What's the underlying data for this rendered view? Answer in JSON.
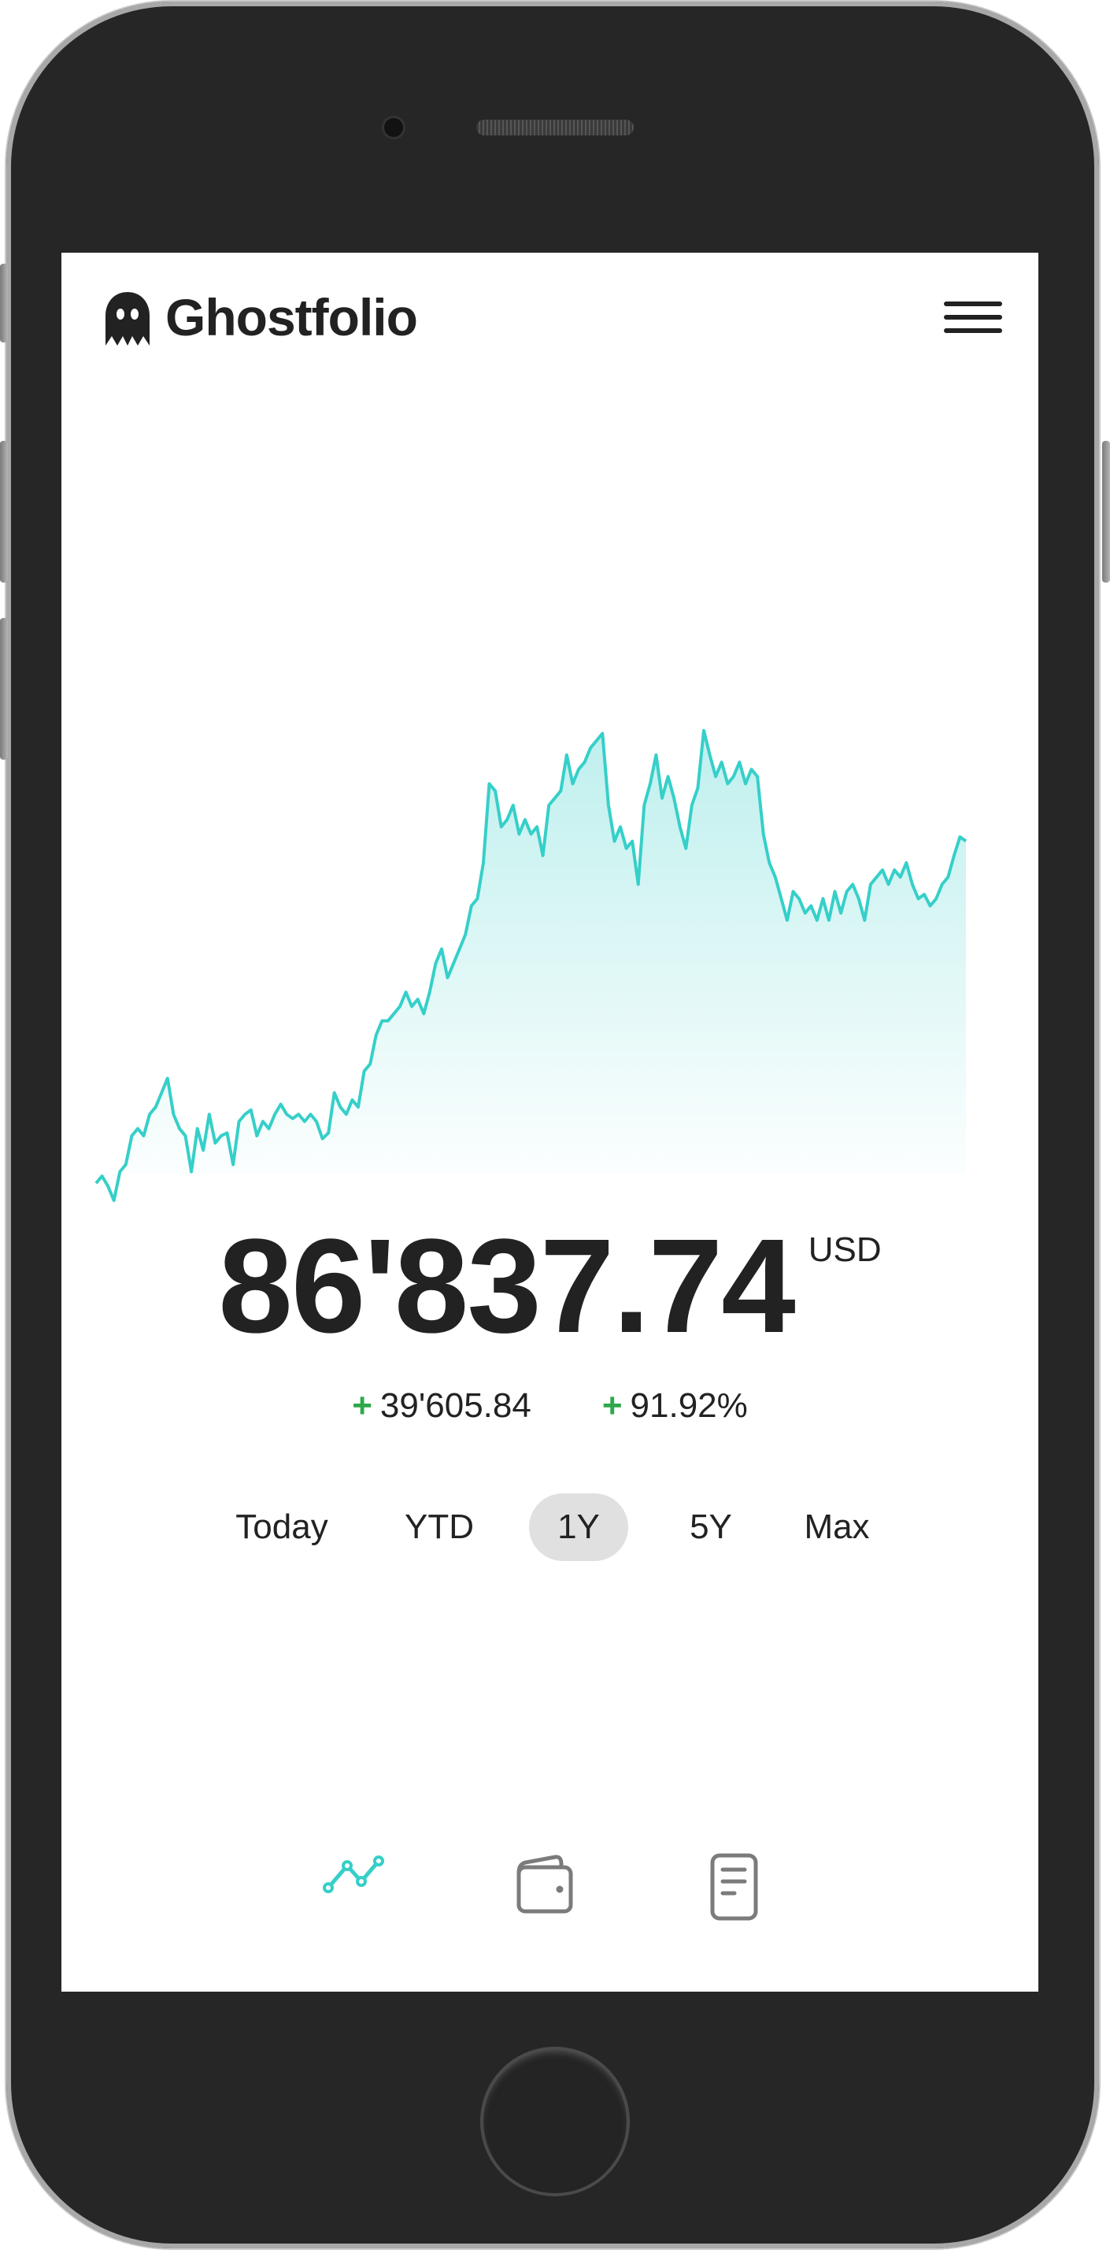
{
  "app": {
    "title": "Ghostfolio"
  },
  "header": {
    "logo_icon": "ghost-icon",
    "menu_icon": "hamburger-menu-icon"
  },
  "portfolio": {
    "value": "86'837.74",
    "currency": "USD",
    "change_sign": "+",
    "change_absolute": "39'605.84",
    "change_percent": "91.92%"
  },
  "periods": {
    "items": [
      {
        "label": "Today"
      },
      {
        "label": "YTD"
      },
      {
        "label": "1Y"
      },
      {
        "label": "5Y"
      },
      {
        "label": "Max"
      }
    ],
    "selected": "1Y"
  },
  "bottom_nav": {
    "items": [
      {
        "icon": "line-chart-icon",
        "active": true
      },
      {
        "icon": "wallet-icon",
        "active": false
      },
      {
        "icon": "document-icon",
        "active": false
      }
    ]
  },
  "colors": {
    "accent": "#36cfc9",
    "positive": "#2ea84a",
    "text": "#222222",
    "selected_tab_bg": "#e0e0e0"
  },
  "chart_data": {
    "type": "area",
    "ylim": [
      45235,
      99648
    ],
    "values": [
      47232,
      48064,
      46899,
      45235,
      48563,
      49395,
      52723,
      53555,
      52723,
      55219,
      56051,
      57715,
      59379,
      55219,
      53555,
      52723,
      48563,
      53555,
      51059,
      55219,
      51891,
      52723,
      53056,
      49395,
      54387,
      55219,
      55718,
      52723,
      54387,
      53555,
      55219,
      56384,
      55219,
      54720,
      55219,
      54387,
      55219,
      54387,
      52390,
      53056,
      57715,
      56051,
      55219,
      56883,
      56051,
      60211,
      61043,
      64371,
      66035,
      66035,
      66867,
      67699,
      69363,
      67699,
      68531,
      66867,
      69363,
      72691,
      74355,
      71027,
      72691,
      74355,
      76019,
      79347,
      80179,
      84339,
      93491,
      92659,
      88499,
      89331,
      90995,
      87667,
      89331,
      87667,
      88499,
      85171,
      90995,
      91827,
      92659,
      96819,
      93491,
      95155,
      95987,
      97651,
      98483,
      99315,
      90995,
      86835,
      88499,
      86003,
      86835,
      81843,
      90995,
      93491,
      96819,
      91827,
      94323,
      91827,
      88499,
      86003,
      90995,
      92992,
      99648,
      96819,
      94323,
      95987,
      93491,
      94323,
      95987,
      93491,
      95155,
      94323,
      87667,
      84339,
      82675,
      80179,
      77683,
      81011,
      80179,
      78515,
      79347,
      77683,
      80179,
      77683,
      81011,
      78515,
      81011,
      81843,
      80179,
      77683,
      81843,
      82675,
      83507,
      81843,
      83507,
      82675,
      84339,
      81843,
      80179,
      80678,
      79347,
      80179,
      81843,
      82675,
      85171,
      87335,
      86838
    ],
    "grid": false
  }
}
